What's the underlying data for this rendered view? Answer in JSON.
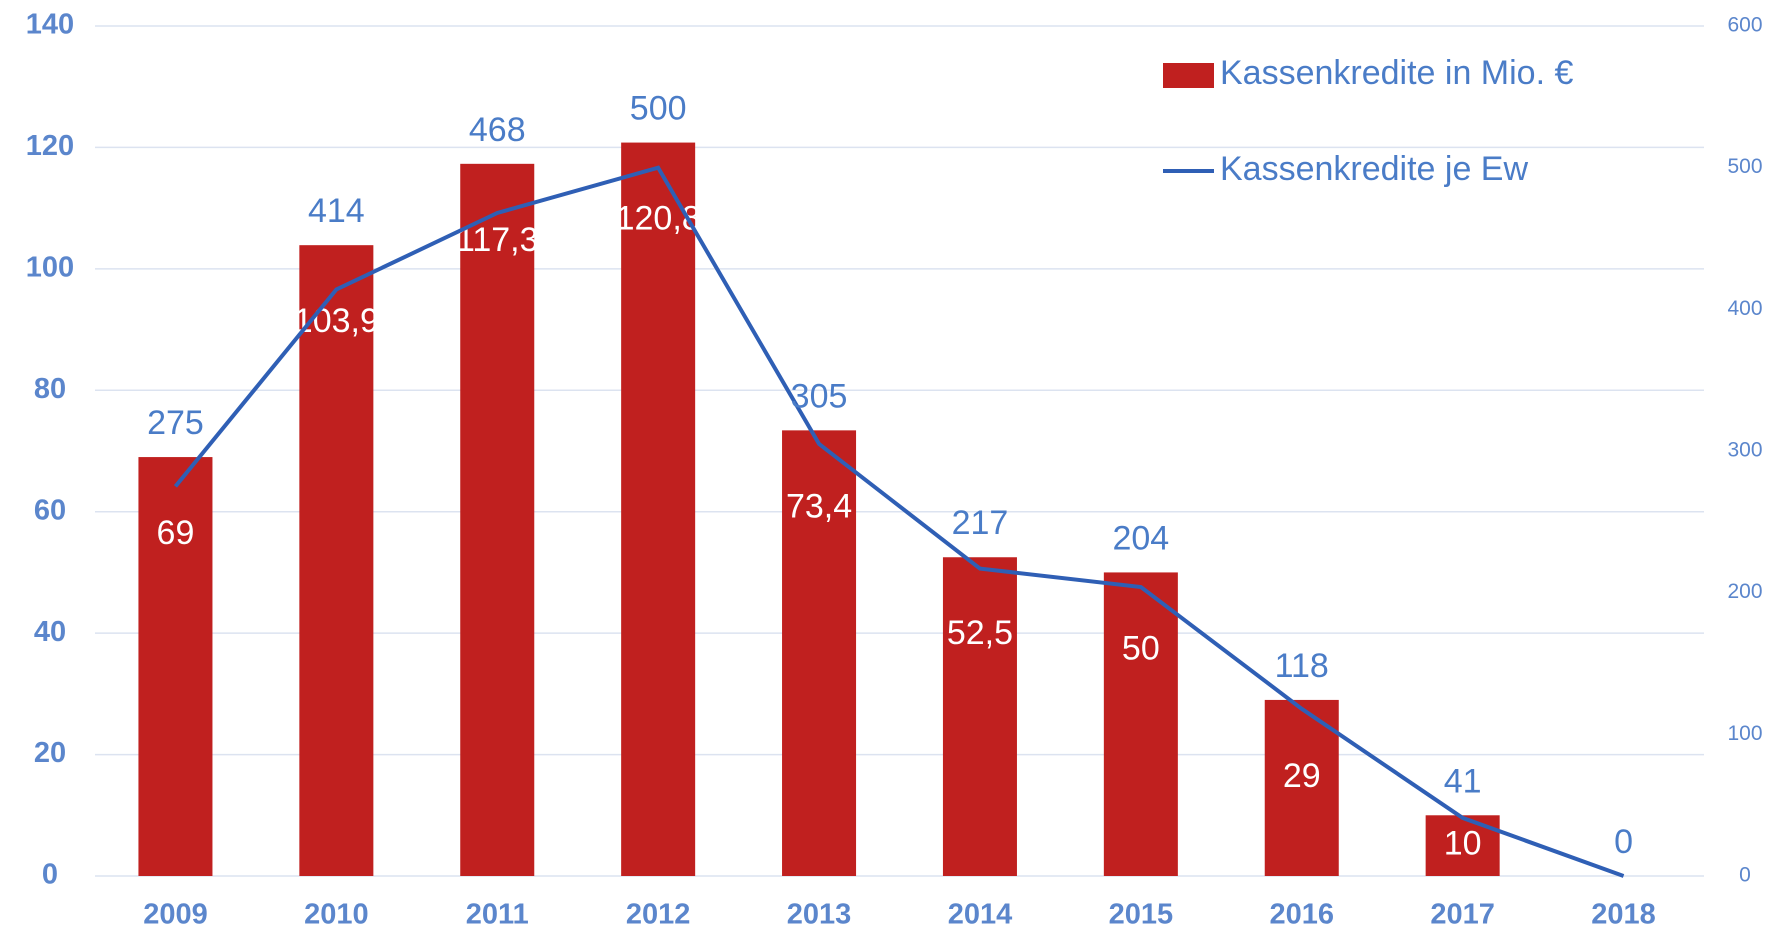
{
  "chart_data": {
    "type": "bar",
    "categories": [
      "2009",
      "2010",
      "2011",
      "2012",
      "2013",
      "2014",
      "2015",
      "2016",
      "2017",
      "2018"
    ],
    "series": [
      {
        "name": "Kassenkredite in Mio. €",
        "type": "bar",
        "color": "#c0201f",
        "values": [
          69,
          103.9,
          117.3,
          120.8,
          73.4,
          52.5,
          50,
          29,
          10,
          null
        ],
        "value_labels": [
          "69",
          "103,9",
          "117,3",
          "120,8",
          "73,4",
          "52,5",
          "50",
          "29",
          "10",
          null
        ]
      },
      {
        "name": "Kassenkredite je Ew",
        "type": "line",
        "axis": "y2",
        "color": "#2f5fb5",
        "values": [
          275,
          414,
          468,
          500,
          305,
          217,
          204,
          118,
          41,
          0
        ]
      }
    ],
    "ylim": [
      0,
      140
    ],
    "yticks": [
      0,
      20,
      40,
      60,
      80,
      100,
      120,
      140
    ],
    "y2lim": [
      0,
      600
    ],
    "y2ticks": [
      0,
      100,
      200,
      300,
      400,
      500,
      600
    ],
    "grid": true,
    "legend": "upper right"
  }
}
